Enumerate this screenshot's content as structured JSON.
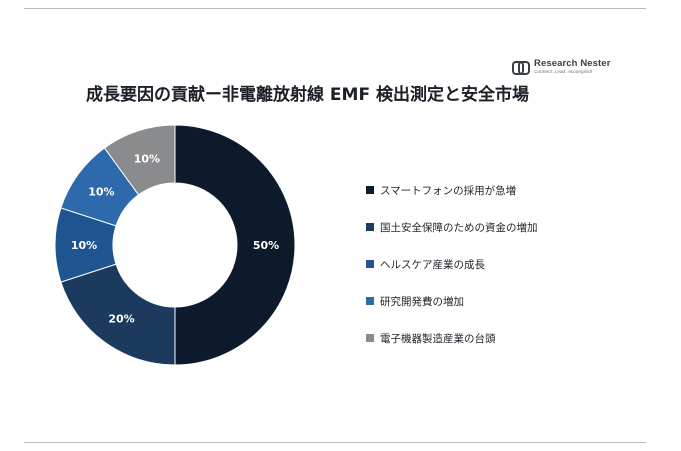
{
  "brand": {
    "name": "Research Nester",
    "tagline": "Connect. Lead. Accomplish"
  },
  "chart_data": {
    "type": "pie",
    "donut": true,
    "title": "成長要因の貢献ー非電離放射線 EMF 検出測定と安全市場",
    "legend_position": "right",
    "slices": [
      {
        "label": "スマートフォンの採用が急増",
        "value": 50,
        "display": "50%",
        "color": "#0d1a2b"
      },
      {
        "label": "国土安全保障のための資金の増加",
        "value": 20,
        "display": "20%",
        "color": "#1c3a5e"
      },
      {
        "label": "ヘルスケア産業の成長",
        "value": 10,
        "display": "10%",
        "color": "#1e5591"
      },
      {
        "label": "研究開発費の増加",
        "value": 10,
        "display": "10%",
        "color": "#2e69ac"
      },
      {
        "label": "電子機器製造産業の台頭",
        "value": 10,
        "display": "10%",
        "color": "#8a8b8d"
      }
    ]
  }
}
